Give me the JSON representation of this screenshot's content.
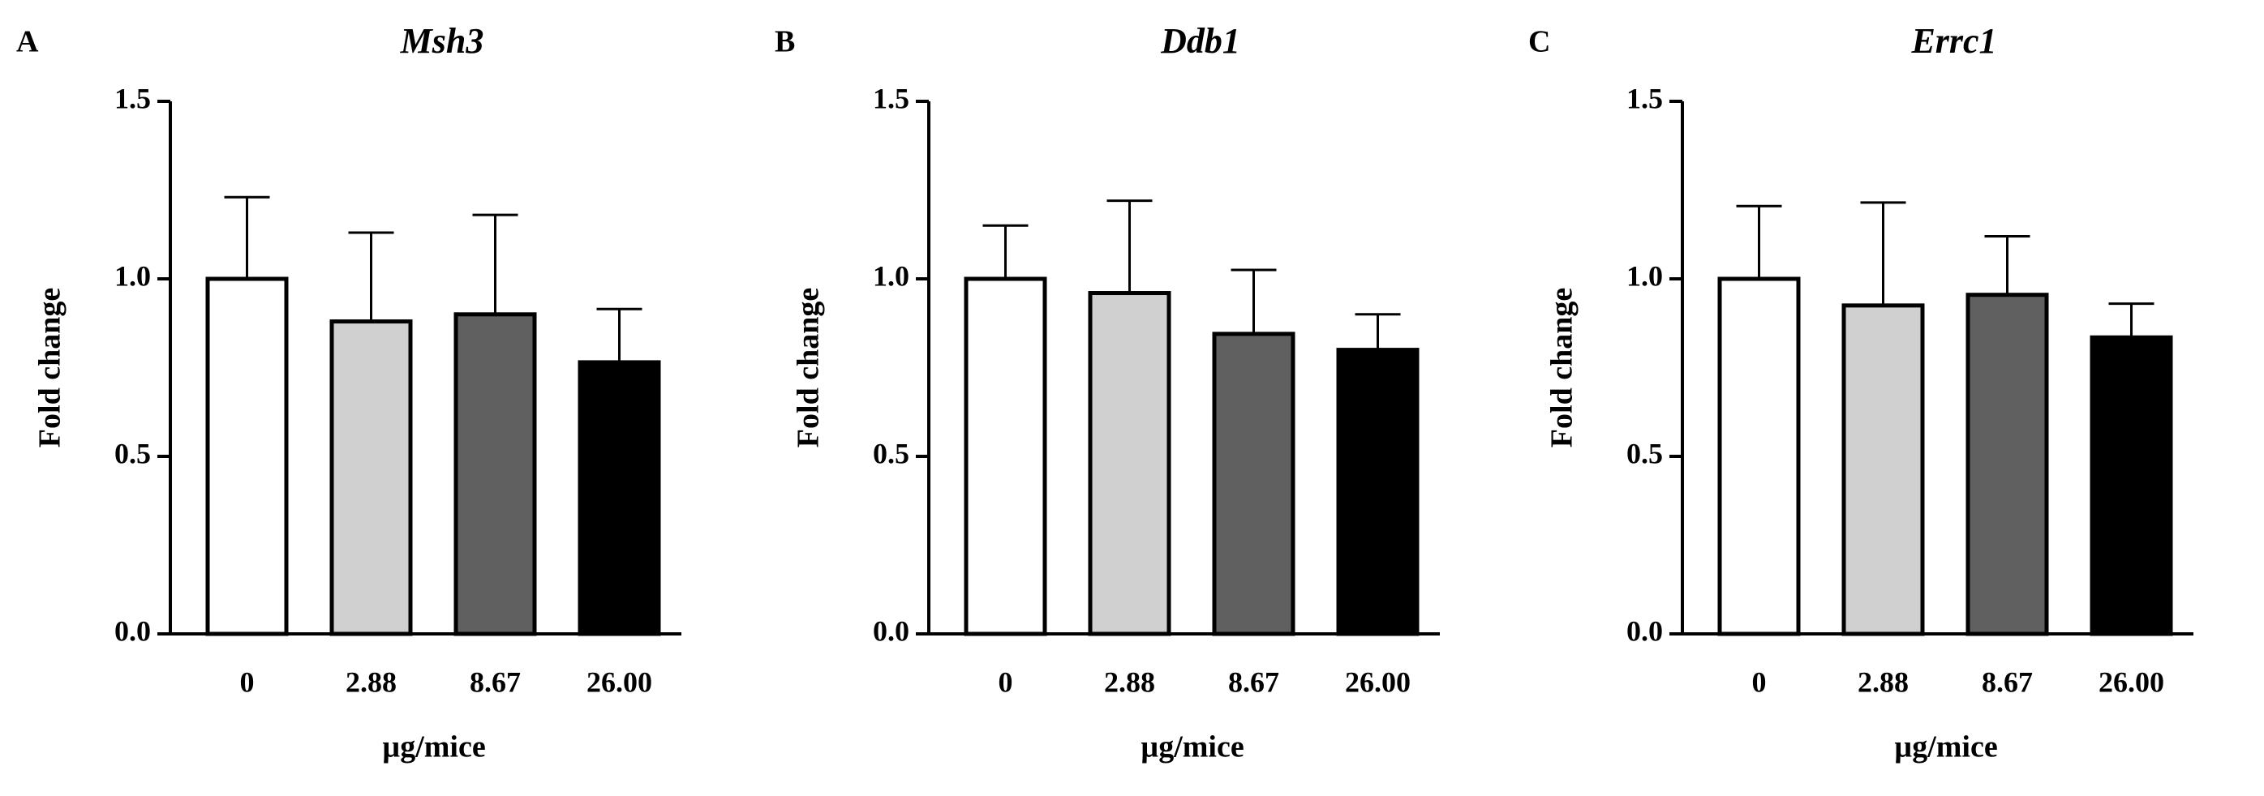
{
  "chart_data": [
    {
      "type": "bar",
      "panel": "A",
      "title": "Msh3",
      "xlabel": "µg/mice",
      "ylabel": "Fold change",
      "categories": [
        "0",
        "2.88",
        "8.67",
        "26.00"
      ],
      "values": [
        1.0,
        0.88,
        0.9,
        0.765
      ],
      "errors": [
        0.23,
        0.25,
        0.28,
        0.15
      ],
      "colors": [
        "#ffffff",
        "#d0d0d0",
        "#606060",
        "#000000"
      ],
      "ylim": [
        0,
        1.5
      ],
      "yticks": [
        {
          "value": 0,
          "label": "0.0"
        },
        0.5,
        {
          "value": 1,
          "label": "1.0"
        },
        1.5
      ]
    },
    {
      "type": "bar",
      "panel": "B",
      "title": "Ddb1",
      "xlabel": "µg/mice",
      "ylabel": "Fold change",
      "categories": [
        "0",
        "2.88",
        "8.67",
        "26.00"
      ],
      "values": [
        1.0,
        0.96,
        0.845,
        0.8
      ],
      "errors": [
        0.15,
        0.26,
        0.18,
        0.1
      ],
      "colors": [
        "#ffffff",
        "#d0d0d0",
        "#606060",
        "#000000"
      ],
      "ylim": [
        0,
        1.5
      ],
      "yticks": [
        {
          "value": 0,
          "label": "0.0"
        },
        0.5,
        {
          "value": 1,
          "label": "1.0"
        },
        1.5
      ]
    },
    {
      "type": "bar",
      "panel": "C",
      "title": "Errc1",
      "xlabel": "µg/mice",
      "ylabel": "Fold change",
      "categories": [
        "0",
        "2.88",
        "8.67",
        "26.00"
      ],
      "values": [
        1.0,
        0.925,
        0.955,
        0.835
      ],
      "errors": [
        0.205,
        0.29,
        0.165,
        0.095
      ],
      "colors": [
        "#ffffff",
        "#d0d0d0",
        "#606060",
        "#000000"
      ],
      "ylim": [
        0,
        1.5
      ],
      "yticks": [
        {
          "value": 0,
          "label": "0.0"
        },
        0.5,
        {
          "value": 1,
          "label": "1.0"
        },
        1.5
      ]
    }
  ]
}
